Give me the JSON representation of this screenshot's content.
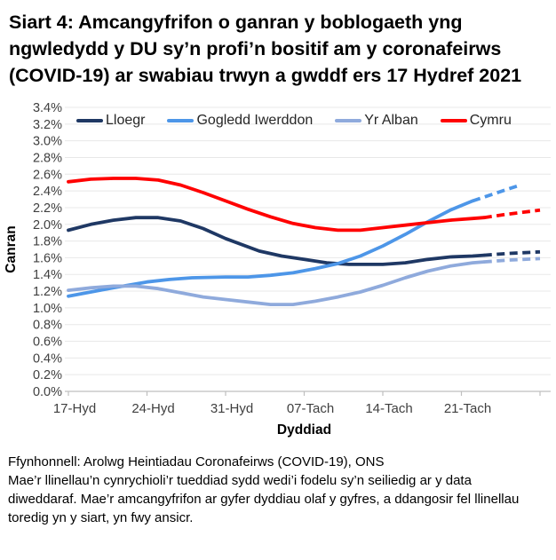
{
  "footer": {
    "source": "Ffynhonnell: Arolwg Heintiadau Coronafeirws (COVID-19), ONS",
    "note": "Mae’r llinellau’n cynrychioli’r tueddiad sydd wedi’i fodelu sy’n seiliedig ar y data diweddaraf. Mae’r amcangyfrifon ar gyfer dyddiau olaf y gyfres, a ddangosir fel llinellau toredig yn y siart, yn fwy ansicr.",
    "dashed_meaning": "llinellau toredig = amcangyfrifon mwy ansicr ar gyfer dyddiau olaf y gyfres"
  },
  "chart_data": {
    "type": "line",
    "title": "Siart 4: Amcangyfrifon o ganran y boblogaeth yng ngwledydd y DU sy’n profi’n bositif am y coronafeirws (COVID-19) ar swabiau trwyn a gwddf ers 17 Hydref 2021",
    "xlabel": "Dyddiad",
    "ylabel": "Canran",
    "ylim": [
      0,
      3.4
    ],
    "y_tick_step": 0.2,
    "y_tick_labels": [
      "0.0%",
      "0.2%",
      "0.4%",
      "0.6%",
      "0.8%",
      "1.0%",
      "1.2%",
      "1.4%",
      "1.6%",
      "1.8%",
      "2.0%",
      "2.2%",
      "2.4%",
      "2.6%",
      "2.8%",
      "3.0%",
      "3.2%",
      "3.4%"
    ],
    "x_max_day": 42,
    "x_ticks": [
      {
        "day": 0,
        "label": "17-Hyd"
      },
      {
        "day": 7,
        "label": "24-Hyd"
      },
      {
        "day": 14,
        "label": "31-Hyd"
      },
      {
        "day": 21,
        "label": "07-Tach"
      },
      {
        "day": 28,
        "label": "14-Tach"
      },
      {
        "day": 35,
        "label": "21-Tach"
      },
      {
        "day": 42,
        "label": ""
      }
    ],
    "grid": true,
    "legend_position": "top-inside",
    "colors": {
      "lloegr": "#1F3864",
      "gogledd_iwerddon": "#4D96E8",
      "yr_alban": "#8FAADC",
      "cymru": "#FF0000",
      "gridline": "#E8E8E8",
      "axis": "#BFBFBF",
      "tick_text": "#3F3F3F"
    },
    "series": [
      {
        "name": "Lloegr",
        "color": "#1F3864",
        "solid": [
          [
            0,
            1.93
          ],
          [
            2,
            2.0
          ],
          [
            4,
            2.05
          ],
          [
            6,
            2.08
          ],
          [
            8,
            2.08
          ],
          [
            10,
            2.04
          ],
          [
            12,
            1.95
          ],
          [
            14,
            1.83
          ],
          [
            17,
            1.68
          ],
          [
            19,
            1.62
          ],
          [
            21,
            1.58
          ],
          [
            23,
            1.54
          ],
          [
            25,
            1.52
          ],
          [
            28,
            1.52
          ],
          [
            30,
            1.54
          ],
          [
            32,
            1.58
          ],
          [
            34,
            1.61
          ],
          [
            36,
            1.62
          ],
          [
            37,
            1.63
          ]
        ],
        "dashed": [
          [
            37,
            1.63
          ],
          [
            39,
            1.65
          ],
          [
            42,
            1.67
          ]
        ]
      },
      {
        "name": "Gogledd Iwerddon",
        "color": "#4D96E8",
        "solid": [
          [
            0,
            1.14
          ],
          [
            2,
            1.19
          ],
          [
            4,
            1.24
          ],
          [
            7,
            1.31
          ],
          [
            9,
            1.34
          ],
          [
            11,
            1.36
          ],
          [
            14,
            1.37
          ],
          [
            16,
            1.37
          ],
          [
            18,
            1.39
          ],
          [
            20,
            1.42
          ],
          [
            22,
            1.47
          ],
          [
            24,
            1.53
          ],
          [
            26,
            1.62
          ],
          [
            28,
            1.74
          ],
          [
            30,
            1.88
          ],
          [
            32,
            2.03
          ],
          [
            34,
            2.17
          ],
          [
            36,
            2.28
          ]
        ],
        "dashed": [
          [
            36,
            2.28
          ],
          [
            38,
            2.37
          ],
          [
            40,
            2.46
          ]
        ]
      },
      {
        "name": "Yr Alban",
        "color": "#8FAADC",
        "solid": [
          [
            0,
            1.21
          ],
          [
            2,
            1.24
          ],
          [
            4,
            1.26
          ],
          [
            6,
            1.26
          ],
          [
            8,
            1.23
          ],
          [
            10,
            1.18
          ],
          [
            12,
            1.13
          ],
          [
            14,
            1.1
          ],
          [
            16,
            1.07
          ],
          [
            18,
            1.04
          ],
          [
            20,
            1.04
          ],
          [
            22,
            1.08
          ],
          [
            24,
            1.13
          ],
          [
            26,
            1.19
          ],
          [
            28,
            1.27
          ],
          [
            30,
            1.36
          ],
          [
            32,
            1.44
          ],
          [
            34,
            1.5
          ],
          [
            36,
            1.54
          ],
          [
            37,
            1.55
          ]
        ],
        "dashed": [
          [
            37,
            1.55
          ],
          [
            39,
            1.57
          ],
          [
            42,
            1.59
          ]
        ]
      },
      {
        "name": "Cymru",
        "color": "#FF0000",
        "solid": [
          [
            0,
            2.51
          ],
          [
            2,
            2.54
          ],
          [
            4,
            2.55
          ],
          [
            6,
            2.55
          ],
          [
            8,
            2.53
          ],
          [
            10,
            2.47
          ],
          [
            12,
            2.38
          ],
          [
            14,
            2.28
          ],
          [
            16,
            2.18
          ],
          [
            18,
            2.09
          ],
          [
            20,
            2.01
          ],
          [
            22,
            1.96
          ],
          [
            24,
            1.93
          ],
          [
            26,
            1.93
          ],
          [
            28,
            1.96
          ],
          [
            30,
            1.99
          ],
          [
            32,
            2.02
          ],
          [
            34,
            2.05
          ],
          [
            36,
            2.07
          ],
          [
            37,
            2.08
          ]
        ],
        "dashed": [
          [
            37,
            2.08
          ],
          [
            39,
            2.12
          ],
          [
            42,
            2.17
          ]
        ]
      }
    ]
  }
}
